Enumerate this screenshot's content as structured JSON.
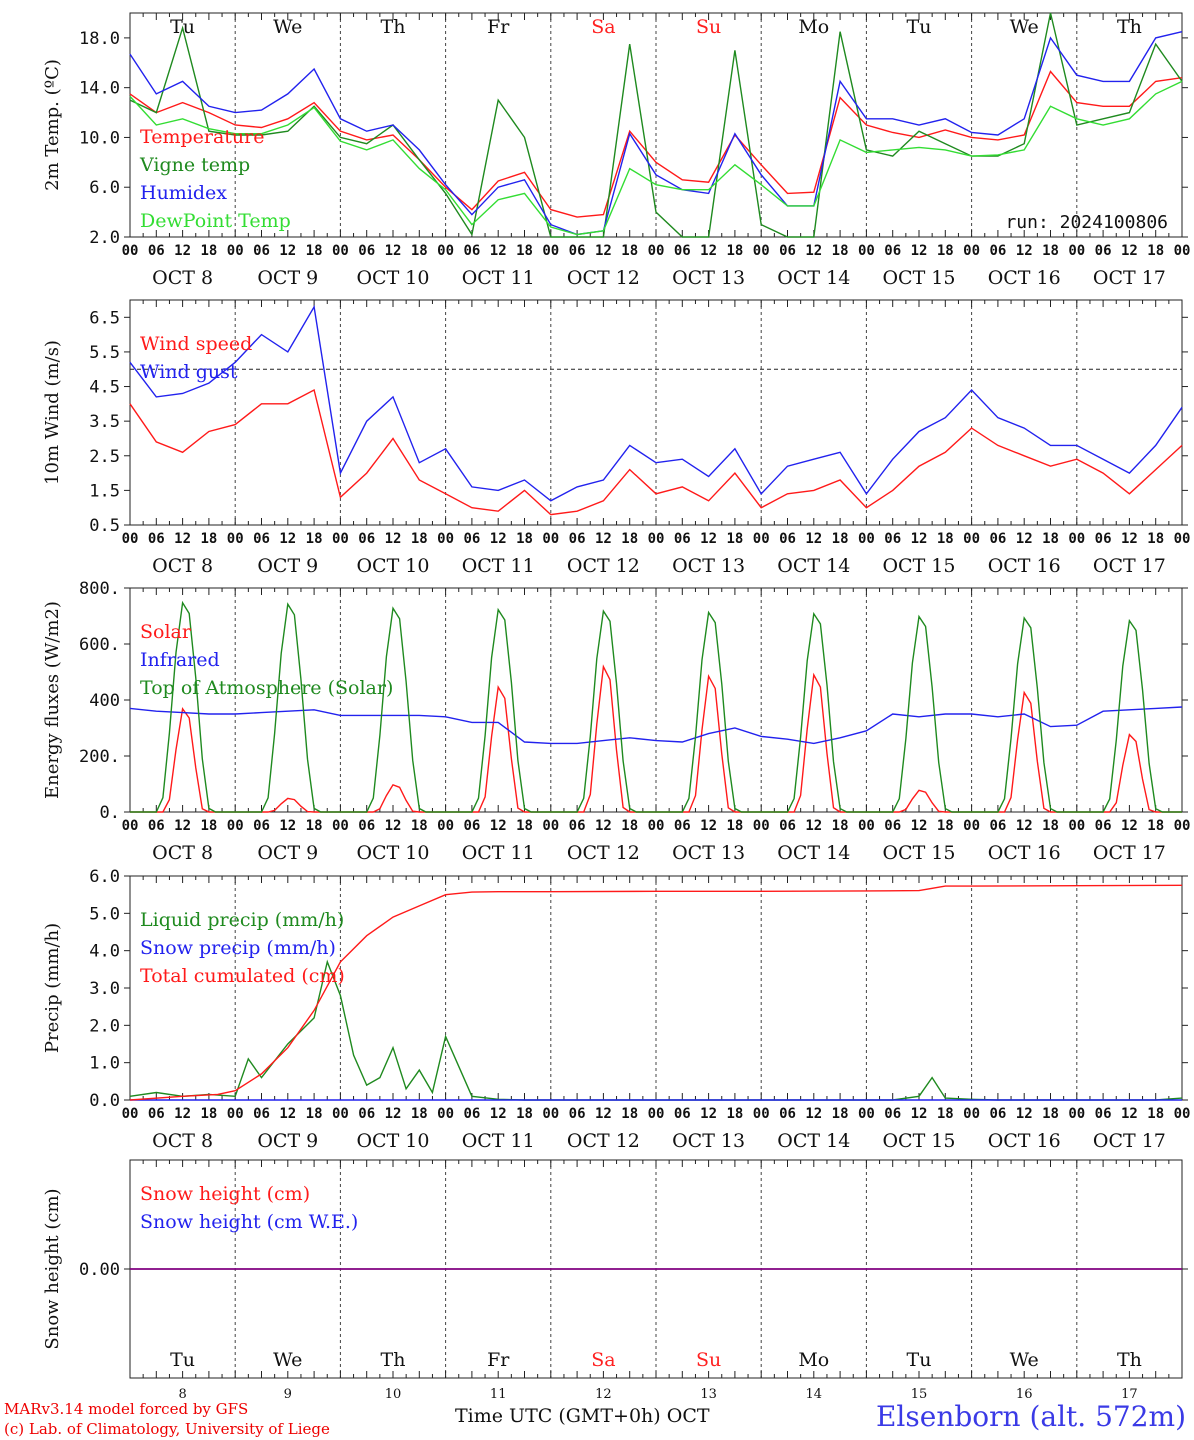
{
  "colors": {
    "red": "#ff1a1a",
    "green": "#1f8a1f",
    "blue": "#2222ee",
    "lightgreen": "#33dd33",
    "purple": "#800080",
    "weekend": "#ff2020"
  },
  "footer": {
    "model": "MARv3.14 model forced by GFS",
    "copyright": "(c) Lab. of Climatology, University of Liege",
    "axis_title": "Time UTC (GMT+0h)",
    "month": "OCT",
    "station": "Elsenborn (alt. 572m)"
  },
  "run_label": "run: 2024100806",
  "days": [
    {
      "date": "8",
      "month": "OCT",
      "weekday": "Tu",
      "weekend": false
    },
    {
      "date": "9",
      "month": "OCT",
      "weekday": "We",
      "weekend": false
    },
    {
      "date": "10",
      "month": "OCT",
      "weekday": "Th",
      "weekend": false
    },
    {
      "date": "11",
      "month": "OCT",
      "weekday": "Fr",
      "weekend": false
    },
    {
      "date": "12",
      "month": "OCT",
      "weekday": "Sa",
      "weekend": true
    },
    {
      "date": "13",
      "month": "OCT",
      "weekday": "Su",
      "weekend": true
    },
    {
      "date": "14",
      "month": "OCT",
      "weekday": "Mo",
      "weekend": false
    },
    {
      "date": "15",
      "month": "OCT",
      "weekday": "Tu",
      "weekend": false
    },
    {
      "date": "16",
      "month": "OCT",
      "weekday": "We",
      "weekend": false
    },
    {
      "date": "17",
      "month": "OCT",
      "weekday": "Th",
      "weekend": false
    }
  ],
  "hour_ticks": [
    "00",
    "06",
    "12",
    "18"
  ],
  "chart_data": [
    {
      "type": "line",
      "ylabel": "2m Temp. (ºC)",
      "ylim": [
        2,
        20
      ],
      "yticks": [
        "2.0",
        "6.0",
        "10.0",
        "14.0",
        "18.0"
      ],
      "ytick_values": [
        2,
        6,
        10,
        14,
        18
      ],
      "x_unit": "hours since OCT 8 00 UTC",
      "series": [
        {
          "name": "Temperature",
          "color": "red",
          "x": [
            0,
            6,
            12,
            18,
            24,
            30,
            36,
            42,
            48,
            54,
            60,
            66,
            72,
            78,
            84,
            90,
            96,
            102,
            108,
            114,
            120,
            126,
            132,
            138,
            144,
            150,
            156,
            162,
            168,
            174,
            180,
            186,
            192,
            198,
            204,
            210,
            216,
            222,
            228,
            234,
            240
          ],
          "values": [
            13.5,
            12,
            12.8,
            12,
            11,
            10.8,
            11.5,
            12.8,
            10.5,
            9.8,
            10.2,
            8.2,
            6,
            4.2,
            6.5,
            7.2,
            4.2,
            3.6,
            3.8,
            10.5,
            8,
            6.6,
            6.4,
            10.2,
            7.8,
            5.5,
            5.6,
            13.2,
            11,
            10.4,
            10,
            10.6,
            10,
            9.8,
            10.2,
            15.3,
            12.8,
            12.5,
            12.5,
            14.5,
            14.8
          ]
        },
        {
          "name": "Vigne temp",
          "color": "green",
          "x": [
            0,
            6,
            12,
            18,
            24,
            30,
            36,
            42,
            48,
            54,
            60,
            66,
            72,
            78,
            84,
            90,
            96,
            102,
            108,
            114,
            120,
            126,
            132,
            138,
            144,
            150,
            156,
            162,
            168,
            174,
            180,
            186,
            192,
            198,
            204,
            210,
            216,
            222,
            228,
            234,
            240
          ],
          "values": [
            13,
            12,
            18.8,
            10.5,
            10.2,
            10.2,
            10.5,
            12.5,
            10,
            9.5,
            11,
            8.2,
            5.5,
            2.2,
            13,
            10,
            2,
            1.5,
            2,
            17.5,
            4,
            2,
            2,
            17,
            3,
            1.5,
            1.5,
            18.5,
            9,
            8.5,
            10.5,
            9.5,
            8.5,
            8.5,
            9.5,
            20,
            11,
            11.5,
            12,
            17.5,
            14.5
          ]
        },
        {
          "name": "Humidex",
          "color": "blue",
          "x": [
            0,
            6,
            12,
            18,
            24,
            30,
            36,
            42,
            48,
            54,
            60,
            66,
            72,
            78,
            84,
            90,
            96,
            102,
            108,
            114,
            120,
            126,
            132,
            138,
            144,
            150,
            156,
            162,
            168,
            174,
            180,
            186,
            192,
            198,
            204,
            210,
            216,
            222,
            228,
            234,
            240
          ],
          "values": [
            16.7,
            13.5,
            14.5,
            12.5,
            12,
            12.2,
            13.5,
            15.5,
            11.5,
            10.5,
            11,
            9,
            6.2,
            3.8,
            6,
            6.6,
            3,
            2.2,
            2.5,
            10.3,
            7,
            5.8,
            5.5,
            10.3,
            7,
            4.5,
            4.5,
            14.5,
            11.5,
            11.5,
            11,
            11.5,
            10.4,
            10.2,
            11.5,
            18,
            15,
            14.5,
            14.5,
            18,
            18.5
          ]
        },
        {
          "name": "DewPoint Temp",
          "color": "lightgreen",
          "x": [
            0,
            6,
            12,
            18,
            24,
            30,
            36,
            42,
            48,
            54,
            60,
            66,
            72,
            78,
            84,
            90,
            96,
            102,
            108,
            114,
            120,
            126,
            132,
            138,
            144,
            150,
            156,
            162,
            168,
            174,
            180,
            186,
            192,
            198,
            204,
            210,
            216,
            222,
            228,
            234,
            240
          ],
          "values": [
            13.3,
            11,
            11.5,
            10.7,
            10.3,
            10.3,
            11,
            12.4,
            9.7,
            9,
            9.8,
            7.5,
            5.8,
            3,
            5,
            5.5,
            2.8,
            2.2,
            2.5,
            7.5,
            6.2,
            5.8,
            5.8,
            7.8,
            6.2,
            4.5,
            4.5,
            9.8,
            8.8,
            9,
            9.2,
            9,
            8.5,
            8.6,
            9,
            12.5,
            11.5,
            11,
            11.5,
            13.5,
            14.5
          ]
        }
      ]
    },
    {
      "type": "line",
      "ylabel": "10m Wind (m/s)",
      "ylim": [
        0.5,
        7
      ],
      "yticks": [
        "0.5",
        "1.5",
        "2.5",
        "3.5",
        "4.5",
        "5.5",
        "6.5"
      ],
      "ytick_values": [
        0.5,
        1.5,
        2.5,
        3.5,
        4.5,
        5.5,
        6.5
      ],
      "threshold": 5,
      "series": [
        {
          "name": "Wind speed",
          "color": "red",
          "x": [
            0,
            6,
            12,
            18,
            24,
            30,
            36,
            42,
            48,
            54,
            60,
            66,
            72,
            78,
            84,
            90,
            96,
            102,
            108,
            114,
            120,
            126,
            132,
            138,
            144,
            150,
            156,
            162,
            168,
            174,
            180,
            186,
            192,
            198,
            204,
            210,
            216,
            222,
            228,
            234,
            240
          ],
          "values": [
            4,
            2.9,
            2.6,
            3.2,
            3.4,
            4,
            4,
            4.4,
            1.3,
            2,
            3,
            1.8,
            1.4,
            1,
            0.9,
            1.5,
            0.8,
            0.9,
            1.2,
            2.1,
            1.4,
            1.6,
            1.2,
            2,
            1,
            1.4,
            1.5,
            1.8,
            1,
            1.5,
            2.2,
            2.6,
            3.3,
            2.8,
            2.5,
            2.2,
            2.4,
            2,
            1.4,
            2.1,
            2.8
          ]
        },
        {
          "name": "Wind gust",
          "color": "blue",
          "x": [
            0,
            6,
            12,
            18,
            24,
            30,
            36,
            42,
            48,
            54,
            60,
            66,
            72,
            78,
            84,
            90,
            96,
            102,
            108,
            114,
            120,
            126,
            132,
            138,
            144,
            150,
            156,
            162,
            168,
            174,
            180,
            186,
            192,
            198,
            204,
            210,
            216,
            222,
            228,
            234,
            240
          ],
          "values": [
            5.2,
            4.2,
            4.3,
            4.6,
            5.2,
            6,
            5.5,
            6.8,
            2,
            3.5,
            4.2,
            2.3,
            2.7,
            1.6,
            1.5,
            1.8,
            1.2,
            1.6,
            1.8,
            2.8,
            2.3,
            2.4,
            1.9,
            2.7,
            1.4,
            2.2,
            2.4,
            2.6,
            1.4,
            2.4,
            3.2,
            3.6,
            4.4,
            3.6,
            3.3,
            2.8,
            2.8,
            2.4,
            2,
            2.8,
            3.9
          ]
        }
      ]
    },
    {
      "type": "line",
      "ylabel": "Energy fluxes (W/m2)",
      "ylim": [
        0,
        800
      ],
      "yticks": [
        "0.",
        "200.",
        "400",
        "600.",
        "800."
      ],
      "ytick_values": [
        0,
        200,
        400,
        600,
        800
      ],
      "series": [
        {
          "name": "Solar",
          "color": "red",
          "peaks": [
            380,
            50,
            100,
            460,
            535,
            500,
            505,
            80,
            440,
            285
          ]
        },
        {
          "name": "Infrared",
          "color": "blue",
          "x": [
            0,
            6,
            12,
            18,
            24,
            30,
            36,
            42,
            48,
            54,
            60,
            66,
            72,
            78,
            84,
            90,
            96,
            102,
            108,
            114,
            120,
            126,
            132,
            138,
            144,
            150,
            156,
            162,
            168,
            174,
            180,
            186,
            192,
            198,
            204,
            210,
            216,
            222,
            228,
            234,
            240
          ],
          "values": [
            370,
            360,
            355,
            350,
            350,
            355,
            360,
            365,
            345,
            345,
            345,
            345,
            340,
            320,
            320,
            250,
            245,
            245,
            255,
            265,
            255,
            250,
            280,
            300,
            270,
            260,
            245,
            265,
            290,
            350,
            340,
            350,
            350,
            340,
            350,
            305,
            310,
            360,
            365,
            370,
            375
          ]
        },
        {
          "name": "Top of Atmosphere (Solar)",
          "color": "green",
          "peaks": [
            760,
            755,
            740,
            735,
            730,
            725,
            720,
            710,
            705,
            695
          ]
        }
      ]
    },
    {
      "type": "line",
      "ylabel": "Precip (mm/h)",
      "ylim": [
        0,
        6
      ],
      "yticks": [
        "0.0",
        "1.0",
        "2.0",
        "3.0",
        "4.0",
        "5.0",
        "6.0"
      ],
      "ytick_values": [
        0,
        1,
        2,
        3,
        4,
        5,
        6
      ],
      "series": [
        {
          "name": "Liquid precip (mm/h)",
          "color": "green",
          "x": [
            0,
            6,
            12,
            18,
            24,
            27,
            30,
            36,
            42,
            45,
            48,
            51,
            54,
            57,
            60,
            63,
            66,
            69,
            72,
            78,
            84,
            90,
            96,
            102,
            108,
            114,
            120,
            126,
            132,
            138,
            144,
            150,
            156,
            162,
            168,
            174,
            180,
            183,
            186,
            192,
            198,
            204,
            210,
            216,
            222,
            228,
            234,
            240
          ],
          "values": [
            0.1,
            0.2,
            0.1,
            0.15,
            0.1,
            1.1,
            0.6,
            1.5,
            2.2,
            3.7,
            2.8,
            1.2,
            0.4,
            0.6,
            1.4,
            0.3,
            0.8,
            0.2,
            1.7,
            0.1,
            0.02,
            0,
            0,
            0,
            0,
            0,
            0,
            0,
            0,
            0,
            0,
            0,
            0,
            0,
            0,
            0,
            0.1,
            0.6,
            0.05,
            0.02,
            0,
            0,
            0,
            0,
            0,
            0,
            0,
            0.05
          ]
        },
        {
          "name": "Snow precip (mm/h)",
          "color": "blue",
          "x": [
            0,
            240
          ],
          "values": [
            0,
            0
          ]
        },
        {
          "name": "Total cumulated (cm)",
          "color": "red",
          "x": [
            0,
            12,
            20,
            24,
            30,
            36,
            42,
            48,
            54,
            60,
            66,
            72,
            78,
            84,
            96,
            120,
            144,
            168,
            180,
            186,
            192,
            216,
            240
          ],
          "values": [
            0,
            0.1,
            0.15,
            0.25,
            0.7,
            1.4,
            2.4,
            3.7,
            4.4,
            4.9,
            5.2,
            5.5,
            5.57,
            5.58,
            5.58,
            5.59,
            5.59,
            5.6,
            5.61,
            5.73,
            5.73,
            5.74,
            5.75
          ]
        }
      ]
    },
    {
      "type": "line",
      "ylabel": "Snow height (cm)",
      "ylim": [
        -1,
        1
      ],
      "yticks": [
        "0.00"
      ],
      "ytick_values": [
        0
      ],
      "series": [
        {
          "name": "Snow height (cm)",
          "color": "red",
          "x": [
            0,
            240
          ],
          "values": [
            0,
            0
          ]
        },
        {
          "name": "Snow height (cm W.E.)",
          "color": "blue",
          "x": [
            0,
            240
          ],
          "values": [
            0,
            0
          ]
        }
      ]
    }
  ]
}
